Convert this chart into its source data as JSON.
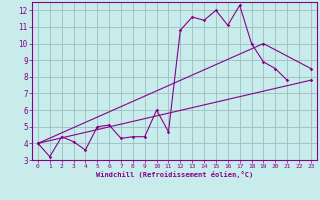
{
  "xlabel": "Windchill (Refroidissement éolien,°C)",
  "bg_color": "#c8ecec",
  "line_color": "#880088",
  "grid_color": "#9bbfbf",
  "xlim": [
    -0.5,
    23.5
  ],
  "ylim": [
    3,
    12.5
  ],
  "xtick_labels": [
    "0",
    "1",
    "2",
    "3",
    "4",
    "5",
    "6",
    "7",
    "8",
    "9",
    "10",
    "11",
    "12",
    "13",
    "14",
    "15",
    "16",
    "17",
    "18",
    "19",
    "20",
    "21",
    "22",
    "23"
  ],
  "xtick_vals": [
    0,
    1,
    2,
    3,
    4,
    5,
    6,
    7,
    8,
    9,
    10,
    11,
    12,
    13,
    14,
    15,
    16,
    17,
    18,
    19,
    20,
    21,
    22,
    23
  ],
  "ytick_vals": [
    3,
    4,
    5,
    6,
    7,
    8,
    9,
    10,
    11,
    12
  ],
  "line1_x": [
    0,
    1,
    2,
    3,
    4,
    5,
    6,
    7,
    8,
    9,
    10,
    11,
    12,
    13,
    14,
    15,
    16,
    17,
    18,
    19,
    20,
    21
  ],
  "line1_y": [
    4.0,
    3.2,
    4.4,
    4.1,
    3.6,
    5.0,
    5.1,
    4.3,
    4.4,
    4.4,
    6.0,
    4.7,
    10.8,
    11.6,
    11.4,
    12.0,
    11.1,
    12.3,
    10.0,
    8.9,
    8.5,
    7.8
  ],
  "line2_x": [
    0,
    23
  ],
  "line2_y": [
    4.0,
    7.8
  ],
  "line3_x": [
    0,
    19,
    23
  ],
  "line3_y": [
    4.0,
    10.0,
    8.5
  ]
}
